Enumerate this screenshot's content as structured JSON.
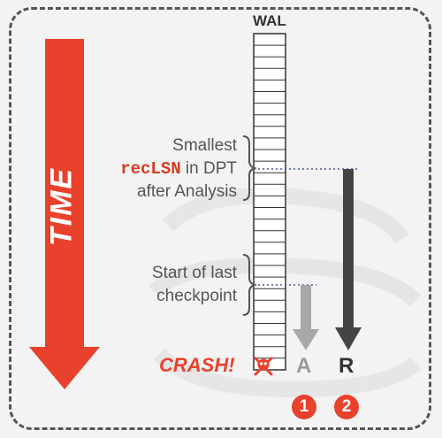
{
  "time_label": "TIME",
  "wal_label": "WAL",
  "annotation_min_reclsn": {
    "line1": "Smallest",
    "code": "recLSN",
    "rest": " in DPT",
    "line3": "after Analysis"
  },
  "annotation_checkpoint": {
    "line1": "Start of last",
    "line2": "checkpoint"
  },
  "crash_label": "CRASH!",
  "phase_a": {
    "letter": "A",
    "number": "1"
  },
  "phase_r": {
    "letter": "R",
    "number": "2"
  },
  "colors": {
    "time_arrow": "#e8412c",
    "crash": "#e8412c",
    "arrow_a": "#a8a8a8",
    "arrow_r": "#444444",
    "code": "#d83a22"
  }
}
